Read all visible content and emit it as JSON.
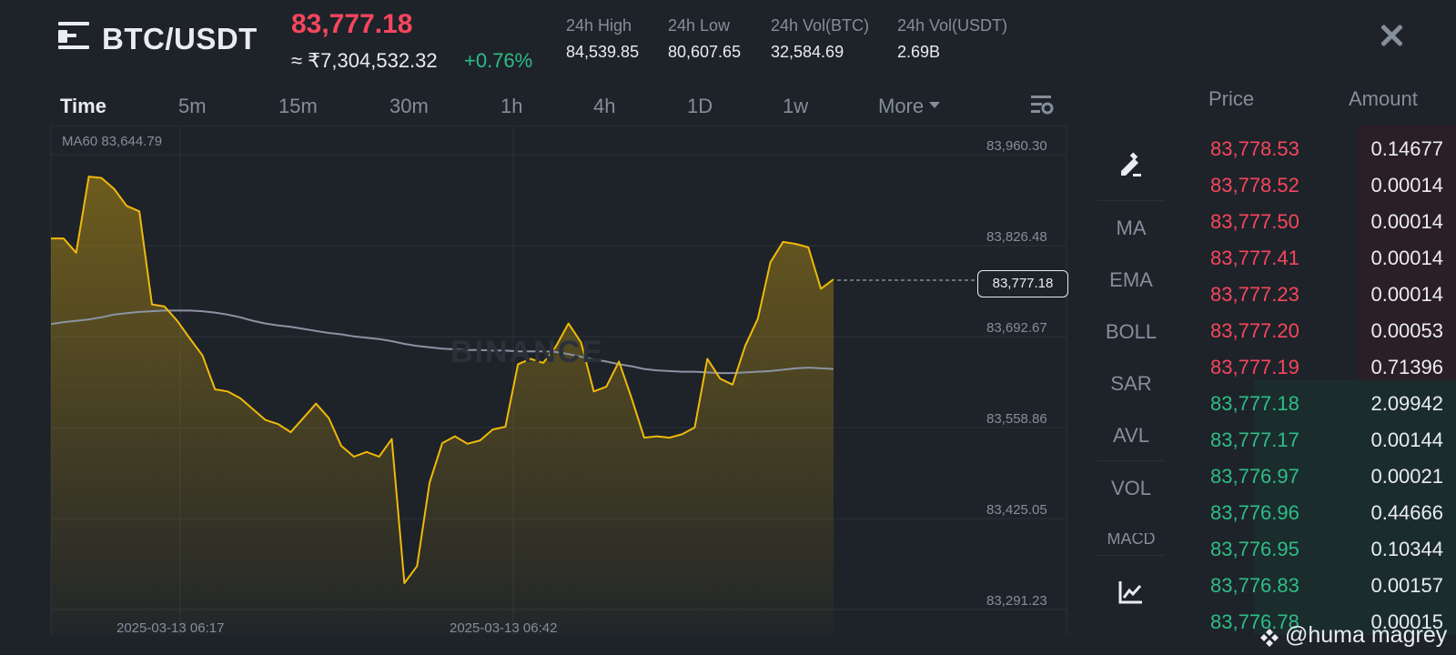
{
  "header": {
    "pair": "BTC/USDT",
    "last_price": "83,777.18",
    "inr_price": "≈ ₹7,304,532.32",
    "change": "+0.76%",
    "stats": [
      {
        "label": "24h High",
        "value": "84,539.85"
      },
      {
        "label": "24h Low",
        "value": "80,607.65"
      },
      {
        "label": "24h Vol(BTC)",
        "value": "32,584.69"
      },
      {
        "label": "24h Vol(USDT)",
        "value": "2.69B"
      }
    ]
  },
  "intervals": [
    "Time",
    "5m",
    "15m",
    "30m",
    "1h",
    "4h",
    "1D",
    "1w",
    "More"
  ],
  "active_interval": "Time",
  "chart_data": {
    "type": "area",
    "ma_label": "MA60 83,644.79",
    "y_ticks": [
      "83,960.30",
      "83,826.48",
      "83,692.67",
      "83,558.86",
      "83,425.05",
      "83,291.23"
    ],
    "x_ticks": [
      "2025-03-13 06:17",
      "2025-03-13 06:42"
    ],
    "current_price_label": "83,777.18",
    "ylim": [
      83291.23,
      83960.3
    ],
    "price": [
      83837,
      83837,
      83816,
      83928,
      83926,
      83910,
      83885,
      83877,
      83740,
      83737,
      83716,
      83690,
      83665,
      83615,
      83612,
      83602,
      83586,
      83570,
      83564,
      83552,
      83573,
      83594,
      83573,
      83532,
      83516,
      83523,
      83516,
      83542,
      83330,
      83355,
      83478,
      83536,
      83546,
      83535,
      83540,
      83556,
      83560,
      83652,
      83660,
      83654,
      83678,
      83712,
      83684,
      83612,
      83619,
      83656,
      83602,
      83544,
      83546,
      83544,
      83549,
      83559,
      83660,
      83631,
      83622,
      83679,
      83719,
      83802,
      83832,
      83829,
      83824,
      83763,
      83777
    ],
    "ma60": [
      83711,
      83714,
      83716,
      83718,
      83721,
      83725,
      83727,
      83729,
      83730,
      83731,
      83731,
      83731,
      83730,
      83728,
      83725,
      83721,
      83716,
      83712,
      83709,
      83707,
      83704,
      83701,
      83698,
      83696,
      83693,
      83691,
      83689,
      83686,
      83682,
      83679,
      83677,
      83675,
      83674,
      83673,
      83673,
      83672,
      83672,
      83671,
      83671,
      83671,
      83670,
      83667,
      83663,
      83659,
      83656,
      83652,
      83649,
      83645,
      83643,
      83642,
      83641,
      83641,
      83640,
      83639,
      83639,
      83640,
      83641,
      83642,
      83644,
      83646,
      83647,
      83646,
      83645
    ]
  },
  "watermark": "BINANCE",
  "indicators": [
    "MA",
    "EMA",
    "BOLL",
    "SAR",
    "AVL",
    "VOL"
  ],
  "indicator_partial": "MACD",
  "orderbook": {
    "price_header": "Price",
    "amount_header": "Amount",
    "asks": [
      {
        "price": "83,778.53",
        "amount": "0.14677"
      },
      {
        "price": "83,778.52",
        "amount": "0.00014"
      },
      {
        "price": "83,777.50",
        "amount": "0.00014"
      },
      {
        "price": "83,777.41",
        "amount": "0.00014"
      },
      {
        "price": "83,777.23",
        "amount": "0.00014"
      },
      {
        "price": "83,777.20",
        "amount": "0.00053"
      },
      {
        "price": "83,777.19",
        "amount": "0.71396"
      }
    ],
    "bids": [
      {
        "price": "83,777.18",
        "amount": "2.09942"
      },
      {
        "price": "83,777.17",
        "amount": "0.00144"
      },
      {
        "price": "83,776.97",
        "amount": "0.00021"
      },
      {
        "price": "83,776.96",
        "amount": "0.44666"
      },
      {
        "price": "83,776.95",
        "amount": "0.10344"
      },
      {
        "price": "83,776.83",
        "amount": "0.00157"
      },
      {
        "price": "83,776.78",
        "amount": "0.00015"
      }
    ]
  },
  "credit": "@huma magrey",
  "colors": {
    "up": "#2ebd85",
    "down": "#f6465d",
    "line": "#f0b90b",
    "ma": "#8a94a3"
  }
}
